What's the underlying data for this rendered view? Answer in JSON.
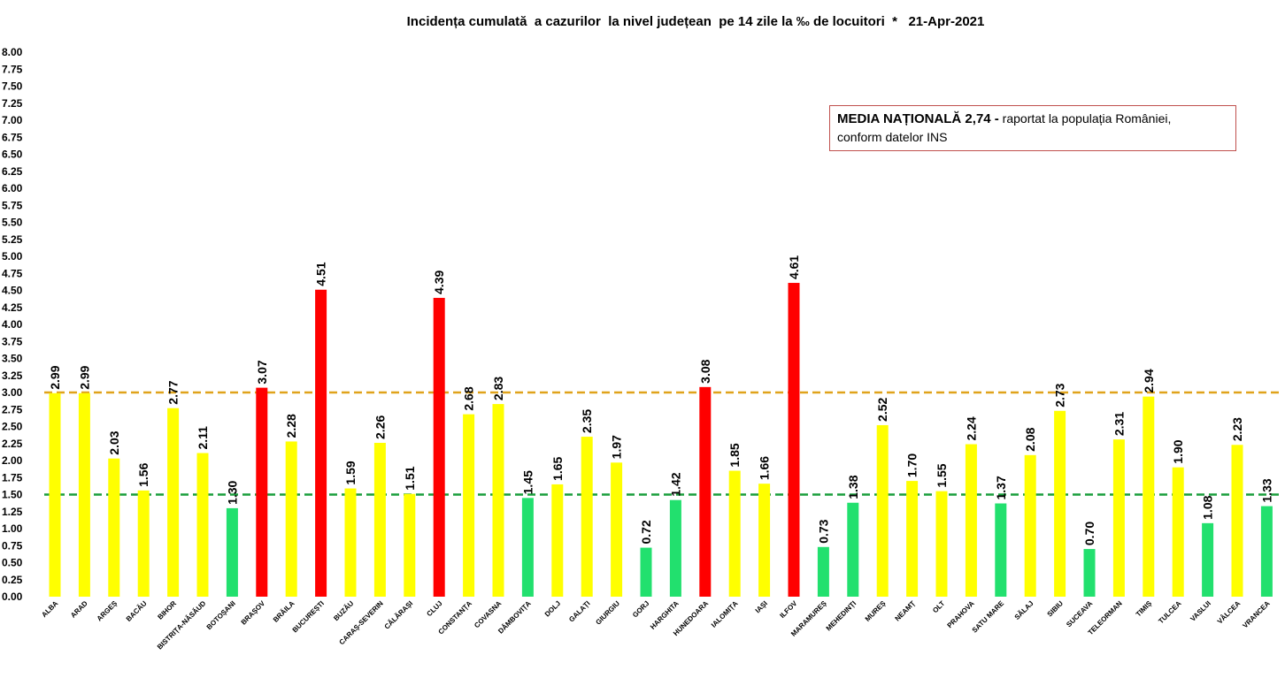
{
  "chart_data": {
    "type": "bar",
    "title": "Incidența cumulată  a cazurilor  la nivel județean  pe 14 zile la ‰ de locuitori  *   21-Apr-2021",
    "ylim": [
      0,
      8
    ],
    "yticks": [
      "0.00",
      "0.25",
      "0.50",
      "0.75",
      "1.00",
      "1.25",
      "1.50",
      "1.75",
      "2.00",
      "2.25",
      "2.50",
      "2.75",
      "3.00",
      "3.25",
      "3.50",
      "3.75",
      "4.00",
      "4.25",
      "4.50",
      "4.75",
      "5.00",
      "5.25",
      "5.50",
      "5.75",
      "6.00",
      "6.25",
      "6.50",
      "6.75",
      "7.00",
      "7.25",
      "7.50",
      "7.75",
      "8.00"
    ],
    "grid": false,
    "categories": [
      "ALBA",
      "ARAD",
      "ARGEȘ",
      "BACĂU",
      "BIHOR",
      "BISTRIȚA-NĂSĂUD",
      "BOTOȘANI",
      "BRAȘOV",
      "BRĂILA",
      "BUCUREȘTI",
      "BUZĂU",
      "CARAȘ-SEVERIN",
      "CĂLĂRAȘI",
      "CLUJ",
      "CONSTANȚA",
      "COVASNA",
      "DÂMBOVIȚA",
      "DOLJ",
      "GALAȚI",
      "GIURGIU",
      "GORJ",
      "HARGHITA",
      "HUNEDOARA",
      "IALOMIȚA",
      "IAȘI",
      "ILFOV",
      "MARAMUREȘ",
      "MEHEDINȚI",
      "MUREȘ",
      "NEAMȚ",
      "OLT",
      "PRAHOVA",
      "SATU MARE",
      "SĂLAJ",
      "SIBIU",
      "SUCEAVA",
      "TELEORMAN",
      "TIMIȘ",
      "TULCEA",
      "VASLUI",
      "VÂLCEA",
      "VRANCEA"
    ],
    "values": [
      2.99,
      2.99,
      2.03,
      1.56,
      2.77,
      2.11,
      1.3,
      3.07,
      2.28,
      4.51,
      1.59,
      2.26,
      1.51,
      4.39,
      2.68,
      2.83,
      1.45,
      1.65,
      2.35,
      1.97,
      0.72,
      1.42,
      3.08,
      1.85,
      1.66,
      4.61,
      0.73,
      1.38,
      2.52,
      1.7,
      1.55,
      2.24,
      1.37,
      2.08,
      2.73,
      0.7,
      2.31,
      2.94,
      1.9,
      1.08,
      2.23,
      1.33
    ],
    "value_labels": [
      "2.99",
      "2.99",
      "2.03",
      "1.56",
      "2.77",
      "2.11",
      "1.30",
      "3.07",
      "2.28",
      "4.51",
      "1.59",
      "2.26",
      "1.51",
      "4.39",
      "2.68",
      "2.83",
      "1.45",
      "1.65",
      "2.35",
      "1.97",
      "0.72",
      "1.42",
      "3.08",
      "1.85",
      "1.66",
      "4.61",
      "0.73",
      "1.38",
      "2.52",
      "1.70",
      "1.55",
      "2.24",
      "1.37",
      "2.08",
      "2.73",
      "0.70",
      "2.31",
      "2.94",
      "1.90",
      "1.08",
      "2.23",
      "1.33"
    ],
    "colors": {
      "green": "#22e06e",
      "yellow": "#ffff00",
      "red": "#ff0000",
      "upper_line": "#e0a31b",
      "lower_line": "#1a9e3c"
    },
    "thresholds": [
      {
        "value": 3.0,
        "color": "#e0a31b",
        "style": "dashed"
      },
      {
        "value": 1.5,
        "color": "#1a9e3c",
        "style": "dashed"
      }
    ],
    "legend_box": {
      "bold_text": "MEDIA NAȚIONALĂ 2,74 -",
      "line1": " raportat la populația României,",
      "line2": "conform datelor INS"
    }
  }
}
